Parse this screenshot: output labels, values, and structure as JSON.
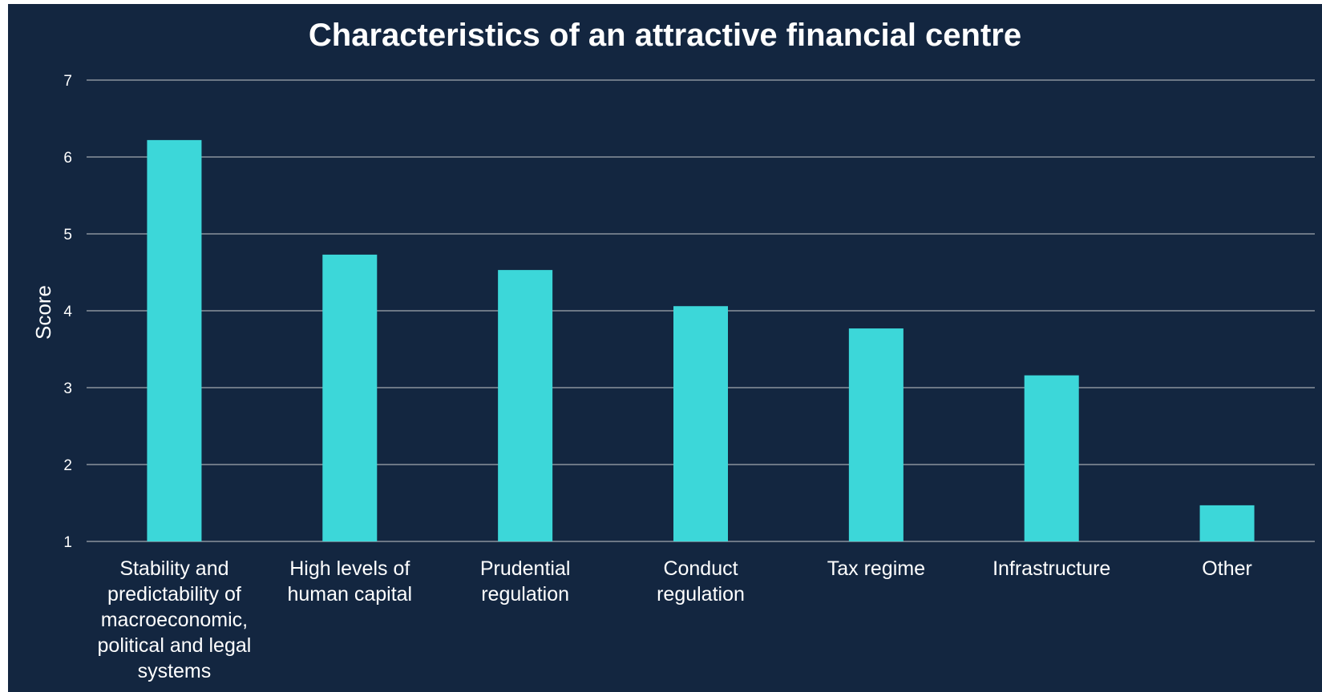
{
  "colors": {
    "background": "#132640",
    "bar": "#3cd7d9",
    "text": "#ffffff",
    "grid": "#8a929c"
  },
  "chart_data": {
    "type": "bar",
    "title": "Characteristics of an attractive financial centre",
    "xlabel": "",
    "ylabel": "Score",
    "ylim": [
      1,
      7
    ],
    "yticks": [
      1,
      2,
      3,
      4,
      5,
      6,
      7
    ],
    "grid": true,
    "categories": [
      "Stability and predictability of macroeconomic, political and legal systems",
      "High levels of human capital",
      "Prudential regulation",
      "Conduct regulation",
      "Tax regime",
      "Infrastructure",
      "Other"
    ],
    "category_label_lines": [
      [
        "Stability and",
        "predictability of",
        "macroeconomic,",
        "political and legal",
        "systems"
      ],
      [
        "High levels of",
        "human capital"
      ],
      [
        "Prudential",
        "regulation"
      ],
      [
        "Conduct",
        "regulation"
      ],
      [
        "Tax regime"
      ],
      [
        "Infrastructure"
      ],
      [
        "Other"
      ]
    ],
    "values": [
      6.22,
      4.73,
      4.53,
      4.06,
      3.77,
      3.16,
      1.47
    ]
  }
}
